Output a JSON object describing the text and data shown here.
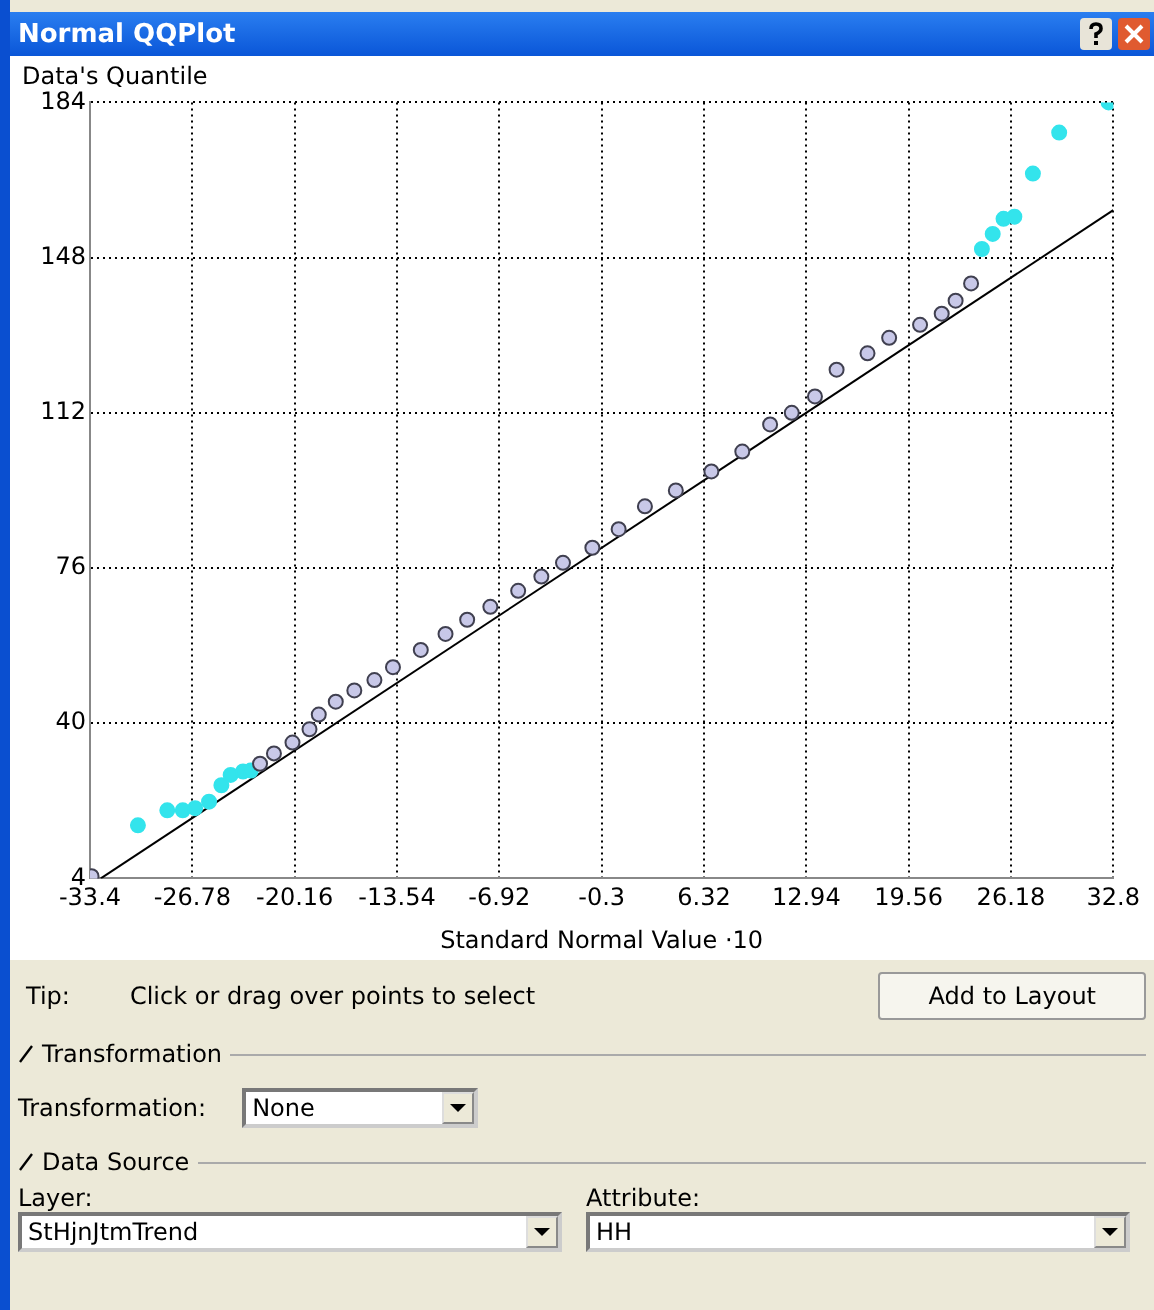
{
  "chart_data": {
    "type": "scatter",
    "title": "Normal QQPlot",
    "ylabel": "Data's Quantile",
    "xlabel": "Standard Normal Value ·10",
    "xlim": [
      -33.4,
      32.8
    ],
    "xticks": [
      -33.4,
      -26.78,
      -20.16,
      -13.54,
      -6.92,
      -0.3,
      6.32,
      12.94,
      19.56,
      26.18,
      32.8
    ],
    "ylim": [
      4,
      184
    ],
    "yticks": [
      4,
      40,
      76,
      112,
      148,
      184
    ],
    "grid": true,
    "marker": "circle",
    "series": [
      {
        "type": "scatter",
        "color": "#c8c8e8",
        "x": [
          -33.3,
          -22.4,
          -21.5,
          -20.3,
          -19.2,
          -18.6,
          -17.5,
          -16.3,
          -15,
          -13.8,
          -12,
          -10.4,
          -9,
          -7.5,
          -5.7,
          -4.2,
          -2.8,
          -0.9,
          0.8,
          2.5,
          4.5,
          6.8,
          8.8,
          10.6,
          12,
          13.5,
          14.9,
          16.9,
          18.3,
          20.3,
          21.7,
          22.6,
          23.6
        ],
        "values": [
          4.5,
          30.6,
          33,
          35.5,
          38.6,
          42,
          45,
          47.6,
          50,
          53,
          57,
          60.7,
          64,
          67,
          70.7,
          74,
          77.2,
          80.7,
          85,
          90.3,
          94,
          98.4,
          103,
          109.3,
          112,
          115.8,
          122,
          125.8,
          129.4,
          132.4,
          135,
          138,
          142
        ]
      },
      {
        "type": "scatter",
        "color": "#33e4ec",
        "x": [
          -30.3,
          -28.4,
          -27.4,
          -26.6,
          -25.7,
          -24.9,
          -24.3,
          -23.5,
          -23,
          24.3,
          25,
          25.7,
          26.4,
          27.6,
          29.3,
          32.5
        ],
        "values": [
          16.3,
          19.8,
          19.8,
          20.3,
          21.8,
          25.6,
          28,
          28.8,
          29,
          150,
          153.5,
          157,
          157.5,
          167.5,
          177,
          184
        ]
      },
      {
        "type": "line",
        "color": "#000000",
        "marker": "none",
        "x": [
          -32.7,
          32.8
        ],
        "values": [
          4,
          159
        ]
      }
    ],
    "annotations": [
      "Tip:",
      "Click or drag over points to select",
      "Add to Layout",
      "Transformation",
      "Transformation:",
      "None",
      "Data Source",
      "Layer:",
      "StHjnJtmTrend",
      "Attribute:",
      "HH"
    ]
  }
}
